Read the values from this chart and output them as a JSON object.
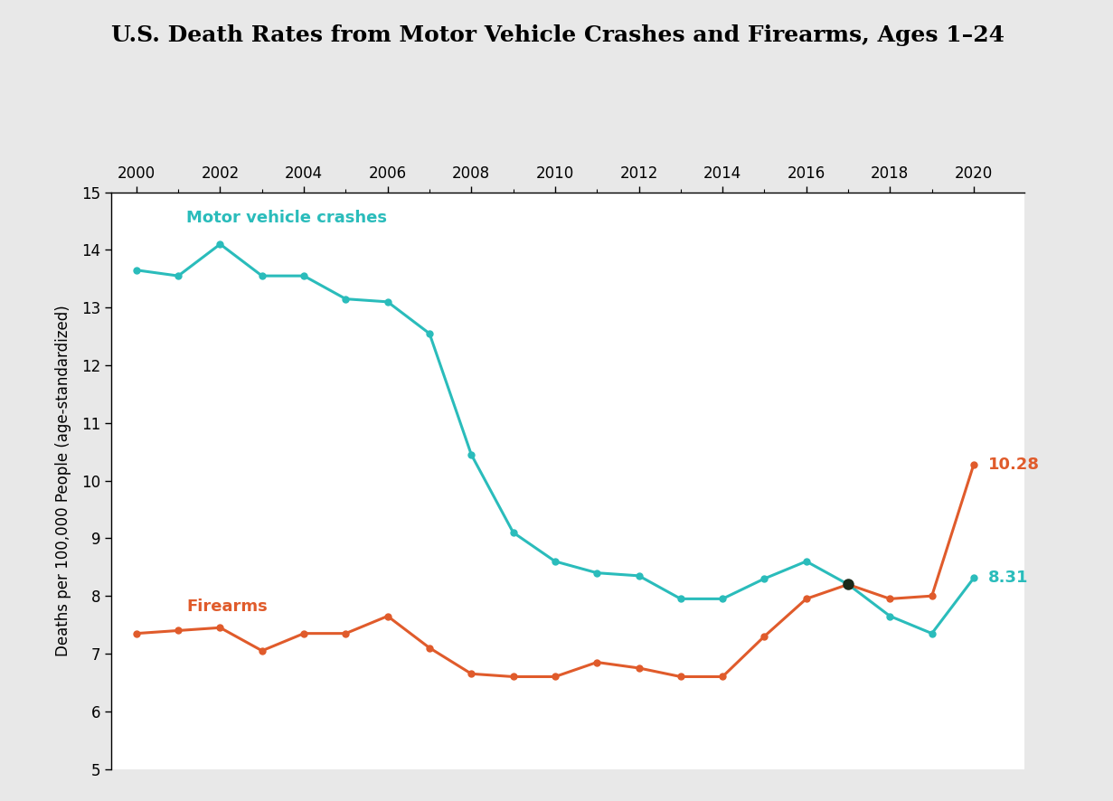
{
  "title": "U.S. Death Rates from Motor Vehicle Crashes and Firearms, Ages 1–24",
  "ylabel": "Deaths per 100,000 People (age-standardized)",
  "years": [
    2000,
    2001,
    2002,
    2003,
    2004,
    2005,
    2006,
    2007,
    2008,
    2009,
    2010,
    2011,
    2012,
    2013,
    2014,
    2015,
    2016,
    2017,
    2018,
    2019,
    2020
  ],
  "motor_vehicle": [
    13.65,
    13.55,
    14.1,
    13.55,
    13.55,
    13.15,
    13.1,
    12.55,
    10.45,
    9.1,
    8.6,
    8.4,
    8.35,
    7.95,
    7.95,
    8.3,
    8.6,
    8.2,
    7.65,
    7.35,
    8.31
  ],
  "firearms": [
    7.35,
    7.4,
    7.45,
    7.05,
    7.35,
    7.35,
    7.65,
    7.1,
    6.65,
    6.6,
    6.6,
    6.85,
    6.75,
    6.6,
    6.6,
    7.3,
    7.95,
    8.2,
    7.95,
    8.0,
    10.28
  ],
  "motor_vehicle_color": "#2ABCBB",
  "firearms_color": "#E05B2B",
  "crossover_color": "#1A2A1A",
  "label_motor_vehicle": "Motor vehicle crashes",
  "label_firearms": "Firearms",
  "annotation_firearms": "10.28",
  "annotation_motor": "8.31",
  "ylim": [
    5,
    15
  ],
  "yticks": [
    5,
    6,
    7,
    8,
    9,
    10,
    11,
    12,
    13,
    14,
    15
  ],
  "xlim": [
    1999.4,
    2021.2
  ],
  "xticks": [
    2000,
    2002,
    2004,
    2006,
    2008,
    2010,
    2012,
    2014,
    2016,
    2018,
    2020
  ],
  "plot_bg_color": "#FFFFFF",
  "fig_bg_color": "#E8E8E8",
  "title_fontsize": 18,
  "label_fontsize": 12,
  "axis_fontsize": 12,
  "annotation_fontsize": 13,
  "line_label_fontsize": 13
}
